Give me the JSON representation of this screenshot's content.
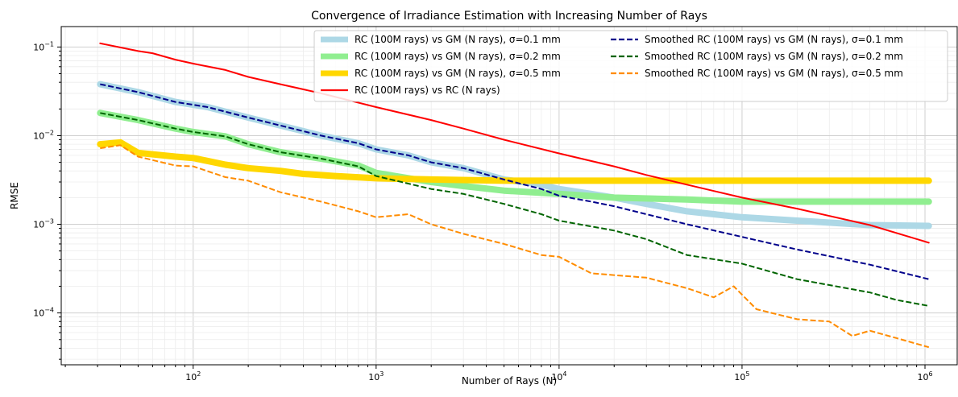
{
  "chart_data": {
    "type": "line",
    "title": "Convergence of Irradiance Estimation with Increasing Number of Rays",
    "xlabel": "Number of Rays (N)",
    "ylabel": "RMSE",
    "xscale": "log",
    "yscale": "log",
    "xlim": [
      19,
      1500000
    ],
    "ylim": [
      2.6e-05,
      0.17
    ],
    "grid": "major and minor, both axes",
    "legend_position": "top-right",
    "x_ticks": [
      {
        "value": 100,
        "base": "10",
        "exp": "2"
      },
      {
        "value": 1000,
        "base": "10",
        "exp": "3"
      },
      {
        "value": 10000,
        "base": "10",
        "exp": "4"
      },
      {
        "value": 100000,
        "base": "10",
        "exp": "5"
      },
      {
        "value": 1000000,
        "base": "10",
        "exp": "6"
      }
    ],
    "y_ticks": [
      {
        "value": 0.0001,
        "base": "10",
        "exp": "−4"
      },
      {
        "value": 0.001,
        "base": "10",
        "exp": "−3"
      },
      {
        "value": 0.01,
        "base": "10",
        "exp": "−2"
      },
      {
        "value": 0.1,
        "base": "10",
        "exp": "−1"
      }
    ],
    "series": [
      {
        "name": "RC (100M rays) vs GM (N rays), σ=0.1 mm",
        "color": "#add8e6",
        "style": "solid",
        "width": 8,
        "points": [
          [
            31,
            0.038
          ],
          [
            50,
            0.031
          ],
          [
            80,
            0.024
          ],
          [
            120,
            0.021
          ],
          [
            200,
            0.016
          ],
          [
            300,
            0.013
          ],
          [
            500,
            0.01
          ],
          [
            800,
            0.0082
          ],
          [
            1000,
            0.007
          ],
          [
            1500,
            0.006
          ],
          [
            2000,
            0.005
          ],
          [
            3000,
            0.0043
          ],
          [
            5000,
            0.0032
          ],
          [
            8000,
            0.0028
          ],
          [
            10000,
            0.0025
          ],
          [
            15000,
            0.0022
          ],
          [
            20000,
            0.002
          ],
          [
            30000,
            0.0017
          ],
          [
            50000,
            0.0014
          ],
          [
            100000,
            0.0012
          ],
          [
            200000,
            0.0011
          ],
          [
            500000,
            0.00098
          ],
          [
            1050000,
            0.00096
          ]
        ]
      },
      {
        "name": "RC (100M rays) vs GM (N rays), σ=0.2 mm",
        "color": "#90ee90",
        "style": "solid",
        "width": 8,
        "points": [
          [
            31,
            0.018
          ],
          [
            50,
            0.015
          ],
          [
            80,
            0.012
          ],
          [
            100,
            0.011
          ],
          [
            150,
            0.0098
          ],
          [
            200,
            0.008
          ],
          [
            300,
            0.0065
          ],
          [
            500,
            0.0055
          ],
          [
            800,
            0.0046
          ],
          [
            1000,
            0.0038
          ],
          [
            2000,
            0.003
          ],
          [
            3000,
            0.0027
          ],
          [
            5000,
            0.0024
          ],
          [
            10000,
            0.0022
          ],
          [
            20000,
            0.002
          ],
          [
            50000,
            0.0019
          ],
          [
            100000,
            0.0018
          ],
          [
            300000,
            0.0018
          ],
          [
            1050000,
            0.0018
          ]
        ]
      },
      {
        "name": "RC (100M rays) vs GM (N rays), σ=0.5 mm",
        "color": "#ffd700",
        "style": "solid",
        "width": 8,
        "points": [
          [
            31,
            0.008
          ],
          [
            40,
            0.0084
          ],
          [
            50,
            0.0064
          ],
          [
            80,
            0.0058
          ],
          [
            100,
            0.0056
          ],
          [
            150,
            0.0047
          ],
          [
            200,
            0.0043
          ],
          [
            300,
            0.004
          ],
          [
            400,
            0.0037
          ],
          [
            600,
            0.0035
          ],
          [
            1000,
            0.0033
          ],
          [
            2000,
            0.0032
          ],
          [
            5000,
            0.0031
          ],
          [
            10000,
            0.0031
          ],
          [
            100000,
            0.0031
          ],
          [
            1050000,
            0.0031
          ]
        ]
      },
      {
        "name": "RC (100M rays) vs RC (N rays)",
        "color": "#ff0000",
        "style": "solid",
        "width": 2,
        "points": [
          [
            31,
            0.11
          ],
          [
            50,
            0.09
          ],
          [
            60,
            0.085
          ],
          [
            80,
            0.072
          ],
          [
            100,
            0.065
          ],
          [
            150,
            0.055
          ],
          [
            200,
            0.046
          ],
          [
            300,
            0.038
          ],
          [
            500,
            0.03
          ],
          [
            1000,
            0.021
          ],
          [
            2000,
            0.015
          ],
          [
            3000,
            0.012
          ],
          [
            5000,
            0.009
          ],
          [
            10000,
            0.0063
          ],
          [
            20000,
            0.0045
          ],
          [
            30000,
            0.0036
          ],
          [
            50000,
            0.0028
          ],
          [
            100000,
            0.002
          ],
          [
            200000,
            0.0015
          ],
          [
            500000,
            0.00098
          ],
          [
            1050000,
            0.00062
          ]
        ]
      },
      {
        "name": "Smoothed RC (100M rays) vs GM (N rays), σ=0.1 mm",
        "color": "#00008b",
        "style": "dashed",
        "width": 2,
        "points": [
          [
            31,
            0.038
          ],
          [
            50,
            0.031
          ],
          [
            80,
            0.024
          ],
          [
            120,
            0.021
          ],
          [
            200,
            0.016
          ],
          [
            300,
            0.013
          ],
          [
            500,
            0.01
          ],
          [
            800,
            0.0082
          ],
          [
            1000,
            0.007
          ],
          [
            1500,
            0.006
          ],
          [
            2000,
            0.005
          ],
          [
            3000,
            0.0043
          ],
          [
            5000,
            0.0032
          ],
          [
            8000,
            0.0025
          ],
          [
            10000,
            0.0021
          ],
          [
            15000,
            0.0018
          ],
          [
            20000,
            0.0016
          ],
          [
            30000,
            0.0013
          ],
          [
            50000,
            0.001
          ],
          [
            100000,
            0.00072
          ],
          [
            200000,
            0.00052
          ],
          [
            500000,
            0.00035
          ],
          [
            1050000,
            0.00024
          ]
        ]
      },
      {
        "name": "Smoothed RC (100M rays) vs GM (N rays), σ=0.2 mm",
        "color": "#006400",
        "style": "dashed",
        "width": 2,
        "points": [
          [
            31,
            0.018
          ],
          [
            50,
            0.015
          ],
          [
            80,
            0.012
          ],
          [
            100,
            0.011
          ],
          [
            150,
            0.0098
          ],
          [
            200,
            0.008
          ],
          [
            300,
            0.0065
          ],
          [
            500,
            0.0055
          ],
          [
            800,
            0.0045
          ],
          [
            1000,
            0.0035
          ],
          [
            2000,
            0.0025
          ],
          [
            3000,
            0.0022
          ],
          [
            5000,
            0.0017
          ],
          [
            8000,
            0.0013
          ],
          [
            10000,
            0.0011
          ],
          [
            20000,
            0.00085
          ],
          [
            30000,
            0.00068
          ],
          [
            50000,
            0.00045
          ],
          [
            100000,
            0.00036
          ],
          [
            200000,
            0.00024
          ],
          [
            500000,
            0.00017
          ],
          [
            700000,
            0.00014
          ],
          [
            1050000,
            0.00012
          ]
        ]
      },
      {
        "name": "Smoothed RC (100M rays) vs GM (N rays), σ=0.5 mm",
        "color": "#ff8c00",
        "style": "dashed",
        "width": 2,
        "points": [
          [
            31,
            0.0072
          ],
          [
            40,
            0.0078
          ],
          [
            50,
            0.0058
          ],
          [
            80,
            0.0046
          ],
          [
            100,
            0.0045
          ],
          [
            150,
            0.0034
          ],
          [
            200,
            0.0031
          ],
          [
            300,
            0.0023
          ],
          [
            500,
            0.0018
          ],
          [
            800,
            0.0014
          ],
          [
            1000,
            0.0012
          ],
          [
            1500,
            0.0013
          ],
          [
            2000,
            0.001
          ],
          [
            3000,
            0.00078
          ],
          [
            5000,
            0.0006
          ],
          [
            8000,
            0.00045
          ],
          [
            10000,
            0.00043
          ],
          [
            15000,
            0.00028
          ],
          [
            30000,
            0.00025
          ],
          [
            50000,
            0.00019
          ],
          [
            70000,
            0.00015
          ],
          [
            90000,
            0.0002
          ],
          [
            120000,
            0.00011
          ],
          [
            200000,
            8.5e-05
          ],
          [
            300000,
            8e-05
          ],
          [
            400000,
            5.5e-05
          ],
          [
            500000,
            6.3e-05
          ],
          [
            700000,
            5.2e-05
          ],
          [
            1050000,
            4.1e-05
          ]
        ]
      }
    ]
  }
}
